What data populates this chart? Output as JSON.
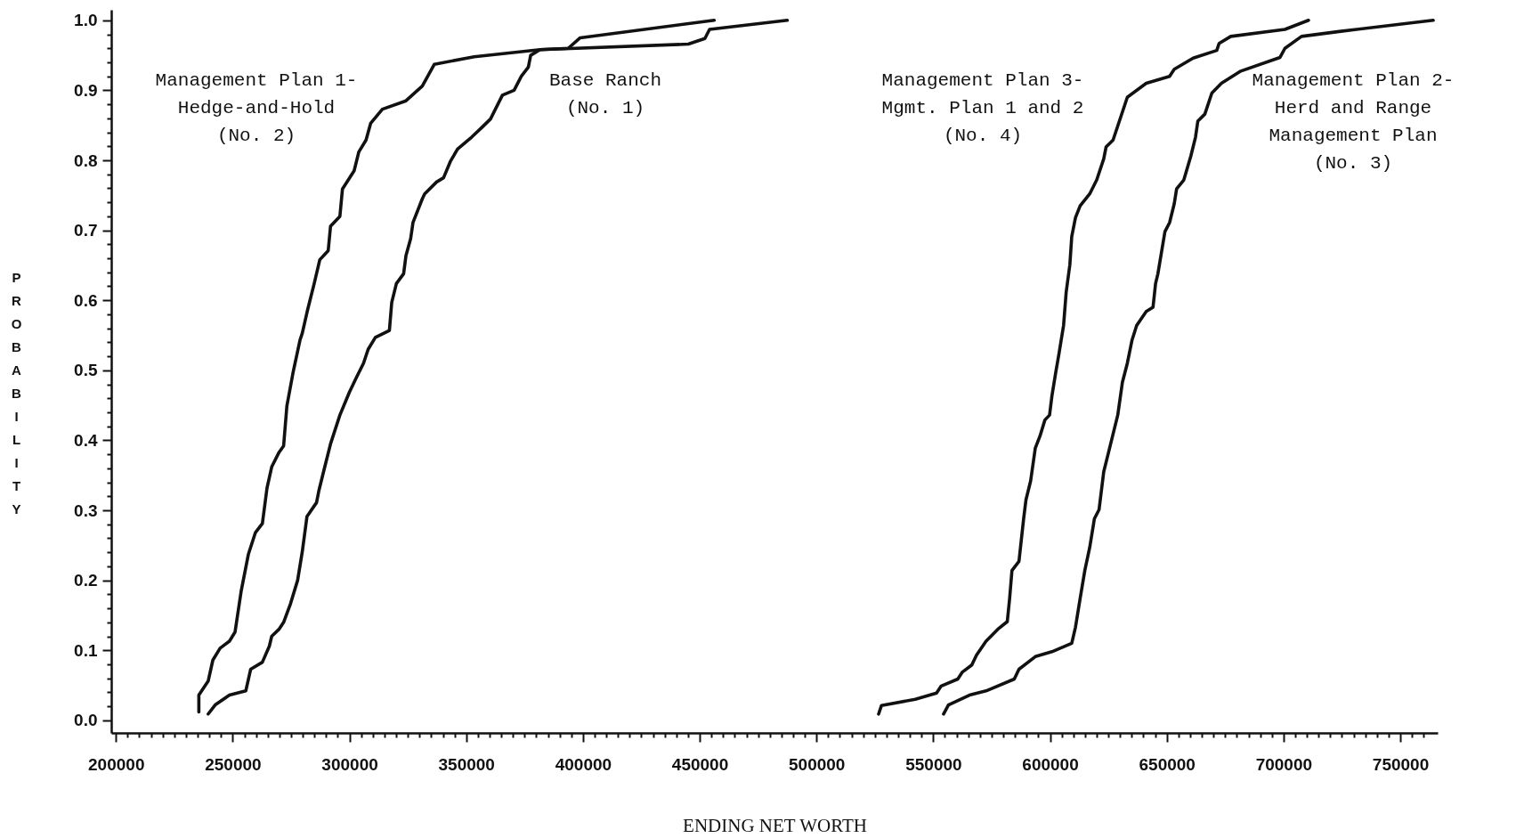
{
  "chart_data": {
    "type": "line",
    "xlabel": "ENDING NET WORTH",
    "ylabel": "PROBABILITY",
    "xlim": [
      198000,
      766000
    ],
    "ylim": [
      -0.018,
      1.015
    ],
    "xticks": [
      200000,
      {
        "value": 205000,
        "label": null
      },
      {
        "value": 210000,
        "label": null
      },
      {
        "value": 215000,
        "label": null
      },
      {
        "value": 220000,
        "label": null
      },
      {
        "value": 225000,
        "label": null
      },
      {
        "value": 230000,
        "label": null
      },
      {
        "value": 235000,
        "label": null
      },
      {
        "value": 240000,
        "label": null
      },
      {
        "value": 245000,
        "label": null
      },
      250000,
      {
        "value": 255000,
        "label": null
      },
      {
        "value": 260000,
        "label": null
      },
      {
        "value": 265000,
        "label": null
      },
      {
        "value": 270000,
        "label": null
      },
      {
        "value": 275000,
        "label": null
      },
      {
        "value": 280000,
        "label": null
      },
      {
        "value": 285000,
        "label": null
      },
      {
        "value": 290000,
        "label": null
      },
      {
        "value": 295000,
        "label": null
      },
      300000,
      {
        "value": 305000,
        "label": null
      },
      {
        "value": 310000,
        "label": null
      },
      {
        "value": 315000,
        "label": null
      },
      {
        "value": 320000,
        "label": null
      },
      {
        "value": 325000,
        "label": null
      },
      {
        "value": 330000,
        "label": null
      },
      {
        "value": 335000,
        "label": null
      },
      {
        "value": 340000,
        "label": null
      },
      {
        "value": 345000,
        "label": null
      },
      350000,
      {
        "value": 355000,
        "label": null
      },
      {
        "value": 360000,
        "label": null
      },
      {
        "value": 365000,
        "label": null
      },
      {
        "value": 370000,
        "label": null
      },
      {
        "value": 375000,
        "label": null
      },
      {
        "value": 380000,
        "label": null
      },
      {
        "value": 385000,
        "label": null
      },
      {
        "value": 390000,
        "label": null
      },
      {
        "value": 395000,
        "label": null
      },
      400000,
      {
        "value": 405000,
        "label": null
      },
      {
        "value": 410000,
        "label": null
      },
      {
        "value": 415000,
        "label": null
      },
      {
        "value": 420000,
        "label": null
      },
      {
        "value": 425000,
        "label": null
      },
      {
        "value": 430000,
        "label": null
      },
      {
        "value": 435000,
        "label": null
      },
      {
        "value": 440000,
        "label": null
      },
      {
        "value": 445000,
        "label": null
      },
      450000,
      {
        "value": 455000,
        "label": null
      },
      {
        "value": 460000,
        "label": null
      },
      {
        "value": 465000,
        "label": null
      },
      {
        "value": 470000,
        "label": null
      },
      {
        "value": 475000,
        "label": null
      },
      {
        "value": 480000,
        "label": null
      },
      {
        "value": 485000,
        "label": null
      },
      {
        "value": 490000,
        "label": null
      },
      {
        "value": 495000,
        "label": null
      },
      500000,
      {
        "value": 505000,
        "label": null
      },
      {
        "value": 510000,
        "label": null
      },
      {
        "value": 515000,
        "label": null
      },
      {
        "value": 520000,
        "label": null
      },
      {
        "value": 525000,
        "label": null
      },
      {
        "value": 530000,
        "label": null
      },
      {
        "value": 535000,
        "label": null
      },
      {
        "value": 540000,
        "label": null
      },
      {
        "value": 545000,
        "label": null
      },
      550000,
      {
        "value": 555000,
        "label": null
      },
      {
        "value": 560000,
        "label": null
      },
      {
        "value": 565000,
        "label": null
      },
      {
        "value": 570000,
        "label": null
      },
      {
        "value": 575000,
        "label": null
      },
      {
        "value": 580000,
        "label": null
      },
      {
        "value": 585000,
        "label": null
      },
      {
        "value": 590000,
        "label": null
      },
      {
        "value": 595000,
        "label": null
      },
      600000,
      {
        "value": 605000,
        "label": null
      },
      {
        "value": 610000,
        "label": null
      },
      {
        "value": 615000,
        "label": null
      },
      {
        "value": 620000,
        "label": null
      },
      {
        "value": 625000,
        "label": null
      },
      {
        "value": 630000,
        "label": null
      },
      {
        "value": 635000,
        "label": null
      },
      {
        "value": 640000,
        "label": null
      },
      {
        "value": 645000,
        "label": null
      },
      650000,
      {
        "value": 655000,
        "label": null
      },
      {
        "value": 660000,
        "label": null
      },
      {
        "value": 665000,
        "label": null
      },
      {
        "value": 670000,
        "label": null
      },
      {
        "value": 675000,
        "label": null
      },
      {
        "value": 680000,
        "label": null
      },
      {
        "value": 685000,
        "label": null
      },
      {
        "value": 690000,
        "label": null
      },
      {
        "value": 695000,
        "label": null
      },
      700000,
      {
        "value": 705000,
        "label": null
      },
      {
        "value": 710000,
        "label": null
      },
      {
        "value": 715000,
        "label": null
      },
      {
        "value": 720000,
        "label": null
      },
      {
        "value": 725000,
        "label": null
      },
      {
        "value": 730000,
        "label": null
      },
      {
        "value": 735000,
        "label": null
      },
      {
        "value": 740000,
        "label": null
      },
      {
        "value": 745000,
        "label": null
      },
      750000,
      {
        "value": 755000,
        "label": null
      },
      {
        "value": 760000,
        "label": null
      }
    ],
    "yticks": [
      {
        "value": 0,
        "label": "0.0"
      },
      {
        "value": 0.02,
        "label": null
      },
      {
        "value": 0.04,
        "label": null
      },
      {
        "value": 0.06,
        "label": null
      },
      {
        "value": 0.08,
        "label": null
      },
      0.1,
      {
        "value": 0.12,
        "label": null
      },
      {
        "value": 0.14,
        "label": null
      },
      {
        "value": 0.16,
        "label": null
      },
      {
        "value": 0.18,
        "label": null
      },
      0.2,
      {
        "value": 0.22,
        "label": null
      },
      {
        "value": 0.24,
        "label": null
      },
      {
        "value": 0.26,
        "label": null
      },
      {
        "value": 0.28,
        "label": null
      },
      0.3,
      {
        "value": 0.32,
        "label": null
      },
      {
        "value": 0.34,
        "label": null
      },
      {
        "value": 0.36,
        "label": null
      },
      {
        "value": 0.38,
        "label": null
      },
      0.4,
      {
        "value": 0.42,
        "label": null
      },
      {
        "value": 0.44,
        "label": null
      },
      {
        "value": 0.46,
        "label": null
      },
      {
        "value": 0.48,
        "label": null
      },
      0.5,
      {
        "value": 0.52,
        "label": null
      },
      {
        "value": 0.54,
        "label": null
      },
      {
        "value": 0.56,
        "label": null
      },
      {
        "value": 0.58,
        "label": null
      },
      0.6,
      {
        "value": 0.62,
        "label": null
      },
      {
        "value": 0.64,
        "label": null
      },
      {
        "value": 0.66,
        "label": null
      },
      {
        "value": 0.68,
        "label": null
      },
      0.7,
      {
        "value": 0.72,
        "label": null
      },
      {
        "value": 0.74,
        "label": null
      },
      {
        "value": 0.76,
        "label": null
      },
      {
        "value": 0.78,
        "label": null
      },
      0.8,
      {
        "value": 0.82,
        "label": null
      },
      {
        "value": 0.84,
        "label": null
      },
      {
        "value": 0.86,
        "label": null
      },
      {
        "value": 0.88,
        "label": null
      },
      0.9,
      {
        "value": 0.92,
        "label": null
      },
      {
        "value": 0.94,
        "label": null
      },
      {
        "value": 0.96,
        "label": null
      },
      {
        "value": 0.98,
        "label": null
      },
      {
        "value": 1,
        "label": "1.0"
      }
    ],
    "series": [
      {
        "name": "Management Plan 1-\nHedge-and-Hold\n(No. 2)",
        "color": "#111111",
        "x": [
          235500,
          235500,
          239500,
          241500,
          244600,
          248600,
          251000,
          253600,
          256700,
          259700,
          262700,
          264700,
          266700,
          269700,
          271800,
          273200,
          275800,
          278800,
          279800,
          281900,
          284900,
          287300,
          290900,
          291900,
          295900,
          297000,
          302000,
          304000,
          307100,
          309100,
          314100,
          324200,
          331200,
          336300,
          353400,
          381600,
          445100,
          452200,
          454200,
          487500
        ],
        "values": [
          0.012,
          0.036,
          0.056,
          0.086,
          0.103,
          0.113,
          0.126,
          0.184,
          0.237,
          0.268,
          0.281,
          0.332,
          0.362,
          0.382,
          0.392,
          0.449,
          0.496,
          0.543,
          0.553,
          0.584,
          0.624,
          0.658,
          0.671,
          0.706,
          0.72,
          0.759,
          0.785,
          0.812,
          0.829,
          0.853,
          0.873,
          0.885,
          0.906,
          0.937,
          0.948,
          0.958,
          0.966,
          0.974,
          0.987,
          1.0
        ]
      },
      {
        "name": "Base Ranch\n(No. 1)",
        "color": "#111111",
        "x": [
          239500,
          242500,
          248600,
          255600,
          257700,
          262700,
          265700,
          266700,
          269800,
          271800,
          274800,
          277800,
          279800,
          281800,
          285900,
          286900,
          288900,
          291900,
          295900,
          300000,
          303000,
          306000,
          308000,
          311100,
          317100,
          318100,
          320100,
          323200,
          324200,
          326200,
          327200,
          331200,
          332200,
          337300,
          340300,
          343300,
          346300,
          352300,
          356400,
          360400,
          365500,
          370500,
          373600,
          376600,
          377600,
          381600,
          393700,
          398800,
          456200
        ],
        "values": [
          0.009,
          0.022,
          0.036,
          0.042,
          0.073,
          0.083,
          0.106,
          0.12,
          0.13,
          0.14,
          0.167,
          0.2,
          0.241,
          0.291,
          0.311,
          0.328,
          0.355,
          0.395,
          0.436,
          0.469,
          0.49,
          0.51,
          0.53,
          0.547,
          0.557,
          0.597,
          0.624,
          0.638,
          0.664,
          0.688,
          0.711,
          0.745,
          0.752,
          0.769,
          0.775,
          0.799,
          0.816,
          0.833,
          0.846,
          0.859,
          0.893,
          0.9,
          0.92,
          0.933,
          0.95,
          0.958,
          0.96,
          0.975,
          1.0
        ]
      },
      {
        "name": "Management Plan 3-\nMgmt. Plan 1 and 2\n(No. 4)",
        "color": "#111111",
        "x": [
          526600,
          527800,
          542300,
          551400,
          553400,
          560500,
          562500,
          566500,
          568500,
          572600,
          577600,
          581700,
          582700,
          583700,
          586700,
          588700,
          589700,
          591700,
          593700,
          595700,
          597800,
          599800,
          600800,
          602400,
          603800,
          605800,
          606900,
          608500,
          609300,
          610900,
          612900,
          617000,
          620000,
          623000,
          624000,
          627000,
          629000,
          631100,
          633100,
          641200,
          651200,
          653200,
          661300,
          671400,
          672400,
          677400,
          700600,
          710700
        ],
        "values": [
          0.009,
          0.021,
          0.03,
          0.039,
          0.049,
          0.059,
          0.069,
          0.079,
          0.093,
          0.113,
          0.13,
          0.141,
          0.174,
          0.214,
          0.227,
          0.288,
          0.315,
          0.342,
          0.389,
          0.406,
          0.429,
          0.436,
          0.463,
          0.496,
          0.523,
          0.564,
          0.611,
          0.651,
          0.691,
          0.718,
          0.735,
          0.752,
          0.772,
          0.802,
          0.819,
          0.829,
          0.849,
          0.87,
          0.89,
          0.91,
          0.92,
          0.93,
          0.946,
          0.957,
          0.967,
          0.977,
          0.987,
          1.0
        ]
      },
      {
        "name": "Management Plan 2-\nHerd and Range\nManagement Plan\n(No. 3)",
        "color": "#111111",
        "x": [
          554400,
          556500,
          565500,
          572600,
          584700,
          586700,
          593700,
          600800,
          609300,
          610900,
          612900,
          614900,
          617000,
          619000,
          621000,
          623000,
          625000,
          627000,
          629000,
          631000,
          633100,
          635100,
          637100,
          641200,
          644100,
          645200,
          646200,
          649200,
          651200,
          653200,
          654200,
          657300,
          660300,
          662300,
          663300,
          666300,
          669300,
          673400,
          681400,
          698500,
          700600,
          707700,
          723800,
          764100
        ],
        "values": [
          0.009,
          0.022,
          0.036,
          0.042,
          0.059,
          0.073,
          0.091,
          0.098,
          0.11,
          0.133,
          0.174,
          0.214,
          0.247,
          0.288,
          0.301,
          0.355,
          0.382,
          0.409,
          0.436,
          0.483,
          0.51,
          0.543,
          0.564,
          0.584,
          0.59,
          0.624,
          0.638,
          0.698,
          0.711,
          0.738,
          0.759,
          0.772,
          0.806,
          0.833,
          0.856,
          0.866,
          0.896,
          0.91,
          0.927,
          0.947,
          0.96,
          0.977,
          0.984,
          1.0
        ]
      }
    ]
  }
}
